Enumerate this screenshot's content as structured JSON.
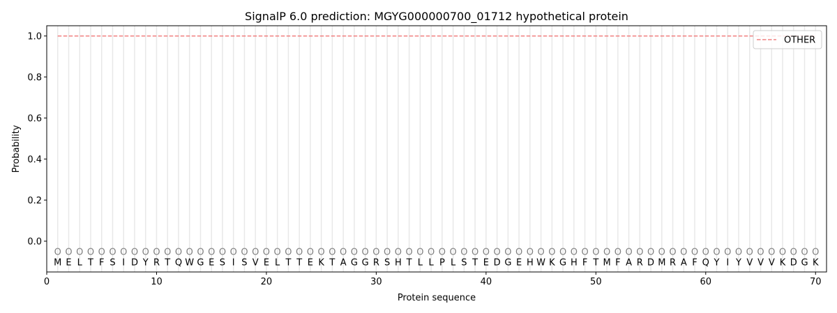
{
  "chart_data": {
    "type": "line",
    "title": "SignalP 6.0 prediction: MGYG000000700_01712 hypothetical protein",
    "xlabel": "Protein sequence",
    "ylabel": "Probability",
    "xlim": [
      0,
      71
    ],
    "ylim": [
      -0.15,
      1.05
    ],
    "xticks": [
      0,
      10,
      20,
      30,
      40,
      50,
      60,
      70
    ],
    "yticks": [
      0.0,
      0.2,
      0.4,
      0.6,
      0.8,
      1.0
    ],
    "grid": "vertical lines at each residue",
    "legend_position": "top-right",
    "sequence": [
      "M",
      "E",
      "L",
      "T",
      "F",
      "S",
      "I",
      "D",
      "Y",
      "R",
      "T",
      "Q",
      "W",
      "G",
      "E",
      "S",
      "I",
      "S",
      "V",
      "E",
      "L",
      "T",
      "T",
      "E",
      "K",
      "T",
      "A",
      "G",
      "G",
      "R",
      "S",
      "H",
      "T",
      "L",
      "L",
      "P",
      "L",
      "S",
      "T",
      "E",
      "D",
      "G",
      "E",
      "H",
      "W",
      "K",
      "G",
      "H",
      "F",
      "T",
      "M",
      "F",
      "A",
      "R",
      "D",
      "M",
      "R",
      "A",
      "F",
      "Q",
      "Y",
      "I",
      "Y",
      "V",
      "V",
      "V",
      "K",
      "D",
      "G",
      "K"
    ],
    "region_labels": "O",
    "series": [
      {
        "name": "OTHER",
        "color": "#f08080",
        "style": "dashed",
        "x_range": [
          1,
          70
        ],
        "value": 1.0
      }
    ]
  }
}
